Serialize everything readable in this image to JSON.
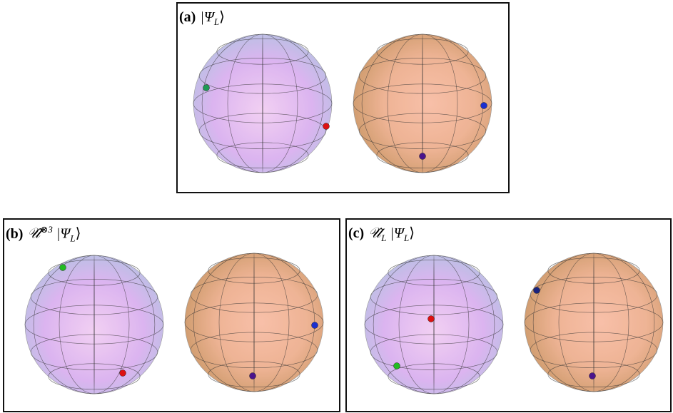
{
  "panels": [
    {
      "tag": "(a)",
      "ket": "|Ψ",
      "ket_sub": "L",
      "ket_close": "⟩"
    },
    {
      "tag": "(b)",
      "op": "𝒰̂",
      "op_sup": "⊗3",
      "ket": "|Ψ",
      "ket_sub": "L",
      "ket_close": "⟩"
    },
    {
      "tag": "(c)",
      "op": "𝒰̂",
      "op_sub": "L",
      "ket": "|Ψ",
      "ket_sub": "L",
      "ket_close": "⟩"
    }
  ]
}
